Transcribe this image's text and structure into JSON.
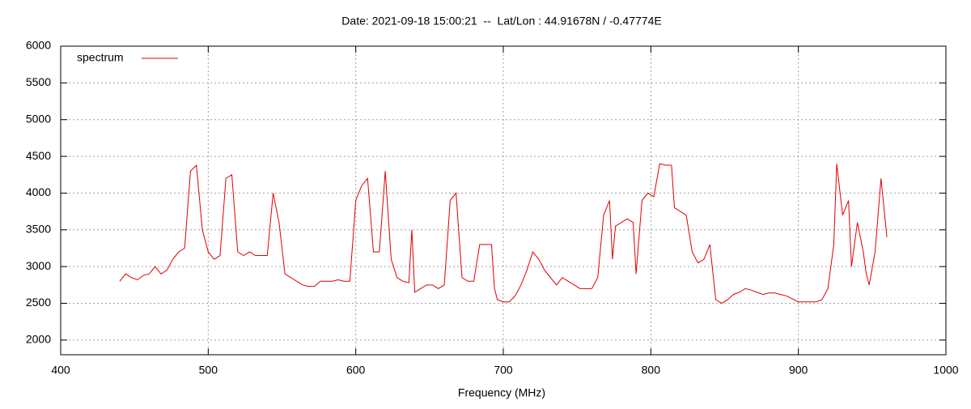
{
  "chart_data": {
    "type": "line",
    "title": "Date: 2021-09-18 15:00:21  --  Lat/Lon : 44.91678N / -0.47774E",
    "x_label": "Frequency (MHz)",
    "x": [
      440,
      444,
      448,
      452,
      456,
      460,
      464,
      468,
      472,
      476,
      480,
      484,
      488,
      492,
      496,
      500,
      504,
      508,
      512,
      516,
      520,
      524,
      528,
      532,
      536,
      540,
      544,
      548,
      552,
      556,
      560,
      564,
      568,
      572,
      576,
      580,
      584,
      588,
      592,
      596,
      600,
      604,
      608,
      612,
      616,
      620,
      624,
      628,
      632,
      636,
      638,
      640,
      644,
      648,
      652,
      656,
      660,
      664,
      668,
      672,
      676,
      680,
      684,
      688,
      692,
      694,
      696,
      700,
      704,
      708,
      712,
      716,
      720,
      724,
      728,
      732,
      736,
      740,
      744,
      748,
      752,
      756,
      760,
      764,
      768,
      772,
      774,
      776,
      780,
      784,
      788,
      790,
      794,
      798,
      802,
      806,
      810,
      814,
      816,
      820,
      824,
      828,
      832,
      836,
      840,
      844,
      848,
      852,
      856,
      860,
      864,
      868,
      872,
      876,
      880,
      884,
      888,
      892,
      896,
      900,
      904,
      908,
      912,
      916,
      920,
      924,
      926,
      930,
      934,
      936,
      940,
      944,
      946,
      948,
      952,
      956,
      960
    ],
    "series": [
      {
        "name": "spectrum",
        "color": "#e00000",
        "values": [
          2800,
          2900,
          2850,
          2820,
          2880,
          2900,
          3000,
          2900,
          2950,
          3100,
          3200,
          3250,
          4300,
          4380,
          3500,
          3200,
          3100,
          3150,
          4200,
          4250,
          3200,
          3150,
          3200,
          3150,
          3150,
          3150,
          4000,
          3600,
          2900,
          2850,
          2800,
          2750,
          2730,
          2730,
          2800,
          2800,
          2800,
          2820,
          2800,
          2800,
          3900,
          4100,
          4200,
          3200,
          3200,
          4300,
          3100,
          2850,
          2800,
          2780,
          3500,
          2650,
          2700,
          2750,
          2750,
          2700,
          2750,
          3900,
          4000,
          2850,
          2800,
          2800,
          3300,
          3300,
          3300,
          2700,
          2550,
          2520,
          2520,
          2600,
          2750,
          2950,
          3200,
          3100,
          2950,
          2850,
          2750,
          2850,
          2800,
          2750,
          2700,
          2700,
          2700,
          2850,
          3700,
          3900,
          3100,
          3550,
          3600,
          3650,
          3600,
          2900,
          3900,
          4000,
          3950,
          4400,
          4380,
          4380,
          3800,
          3750,
          3700,
          3200,
          3050,
          3100,
          3300,
          2550,
          2500,
          2550,
          2620,
          2650,
          2700,
          2680,
          2650,
          2620,
          2640,
          2640,
          2620,
          2600,
          2560,
          2520,
          2520,
          2520,
          2520,
          2550,
          2700,
          3300,
          4400,
          3700,
          3900,
          3000,
          3600,
          3200,
          2900,
          2750,
          3200,
          4200,
          3400
        ]
      }
    ],
    "xlim": [
      400,
      1000
    ],
    "xticks": [
      400,
      500,
      600,
      700,
      800,
      900,
      1000
    ],
    "ylim": [
      1800,
      6000
    ],
    "yticks": [
      2000,
      2500,
      3000,
      3500,
      4000,
      4500,
      5000,
      5500,
      6000
    ],
    "grid": true,
    "legend": "top-left"
  }
}
